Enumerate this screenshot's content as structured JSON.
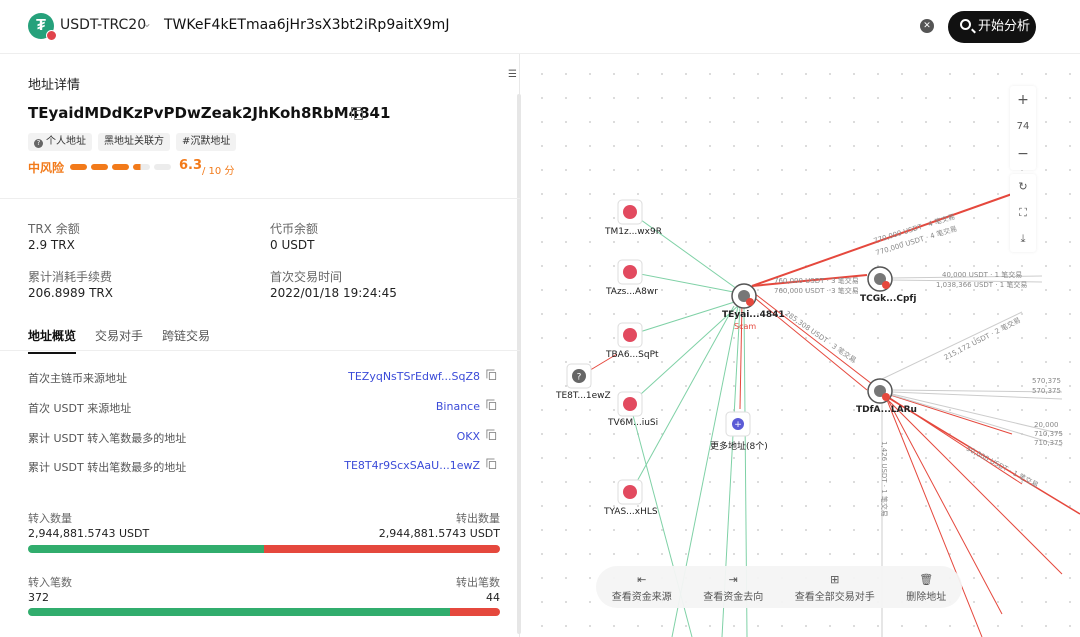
{
  "header": {
    "chain": "USDT-TRC20",
    "search_value": "TWKeF4kETmaa6jHr3sX3bt2iRp9aitX9mJ",
    "analyze_label": "开始分析"
  },
  "detail": {
    "section_title": "地址详情",
    "address": "TEyaidMDdKzPvPDwZeak2JhKoh8RbM4841",
    "tags": [
      "个人地址",
      "黑地址关联方",
      "#沉默地址"
    ],
    "risk_label": "中风险",
    "risk_score": "6.3",
    "risk_max": "/ 10 分",
    "risk_level": 0.63,
    "trx_balance_label": "TRX 余额",
    "trx_balance": "2.9 TRX",
    "token_balance_label": "代币余额",
    "token_balance": "0 USDT",
    "fee_label": "累计消耗手续费",
    "fee": "206.8989 TRX",
    "first_tx_label": "首次交易时间",
    "first_tx": "2022/01/18 19:24:45"
  },
  "tabs": [
    "地址概览",
    "交易对手",
    "跨链交易"
  ],
  "overview": [
    {
      "label": "首次主链币来源地址",
      "value": "TEZyqNsTSrEdwf...SqZ8"
    },
    {
      "label": "首次 USDT 来源地址",
      "value": "Binance"
    },
    {
      "label": "累计 USDT 转入笔数最多的地址",
      "value": "OKX"
    },
    {
      "label": "累计 USDT 转出笔数最多的地址",
      "value": "TE8T4r9ScxSAaU...1ewZ"
    }
  ],
  "flows": {
    "in_amount_label": "转入数量",
    "in_amount": "2,944,881.5743 USDT",
    "out_amount_label": "转出数量",
    "out_amount": "2,944,881.5743 USDT",
    "amount_in_share": 0.5,
    "in_count_label": "转入笔数",
    "in_count": "372",
    "out_count_label": "转出笔数",
    "out_count": "44",
    "count_in_share": 0.894
  },
  "graph": {
    "zoom_level": "74",
    "nodes": {
      "center": "TEyai...4841",
      "center_tag": "Scam",
      "n1": "TM1z...wx9R",
      "n2": "TAzs...A8wr",
      "n3": "TBA6...SqPt",
      "n4": "TE8T...1ewZ",
      "n5": "TV6M...iuSi",
      "n6": "TYAS...xHLS",
      "more": "更多地址(8个)",
      "tcg": "TCGk...Cpfj",
      "tdf": "TDfA...LARu"
    },
    "edges": {
      "e1": "770,000 USDT · 4 笔交易",
      "e2": "770,000 USDT · 4 笔交易",
      "e3": "760,000 USDT · 3 笔交易",
      "e4": "760,000 USDT · 3 笔交易",
      "e5": "40,000 USDT · 1 笔交易",
      "e6": "1,038,366 USDT · 1 笔交易",
      "e7": "215,172 USDT · 2 笔交易",
      "e8": "285,308 USDT · 3 笔交易",
      "e9": "570,375",
      "e10": "570,375",
      "e11": "20,000",
      "e12": "710,375",
      "e13": "710,375",
      "e14": "50,000 USDT · 1 笔交易",
      "e15": "1,426 USDT · 1 笔交易"
    },
    "actions": [
      "查看资金来源",
      "查看资金去向",
      "查看全部交易对手",
      "删除地址"
    ]
  }
}
